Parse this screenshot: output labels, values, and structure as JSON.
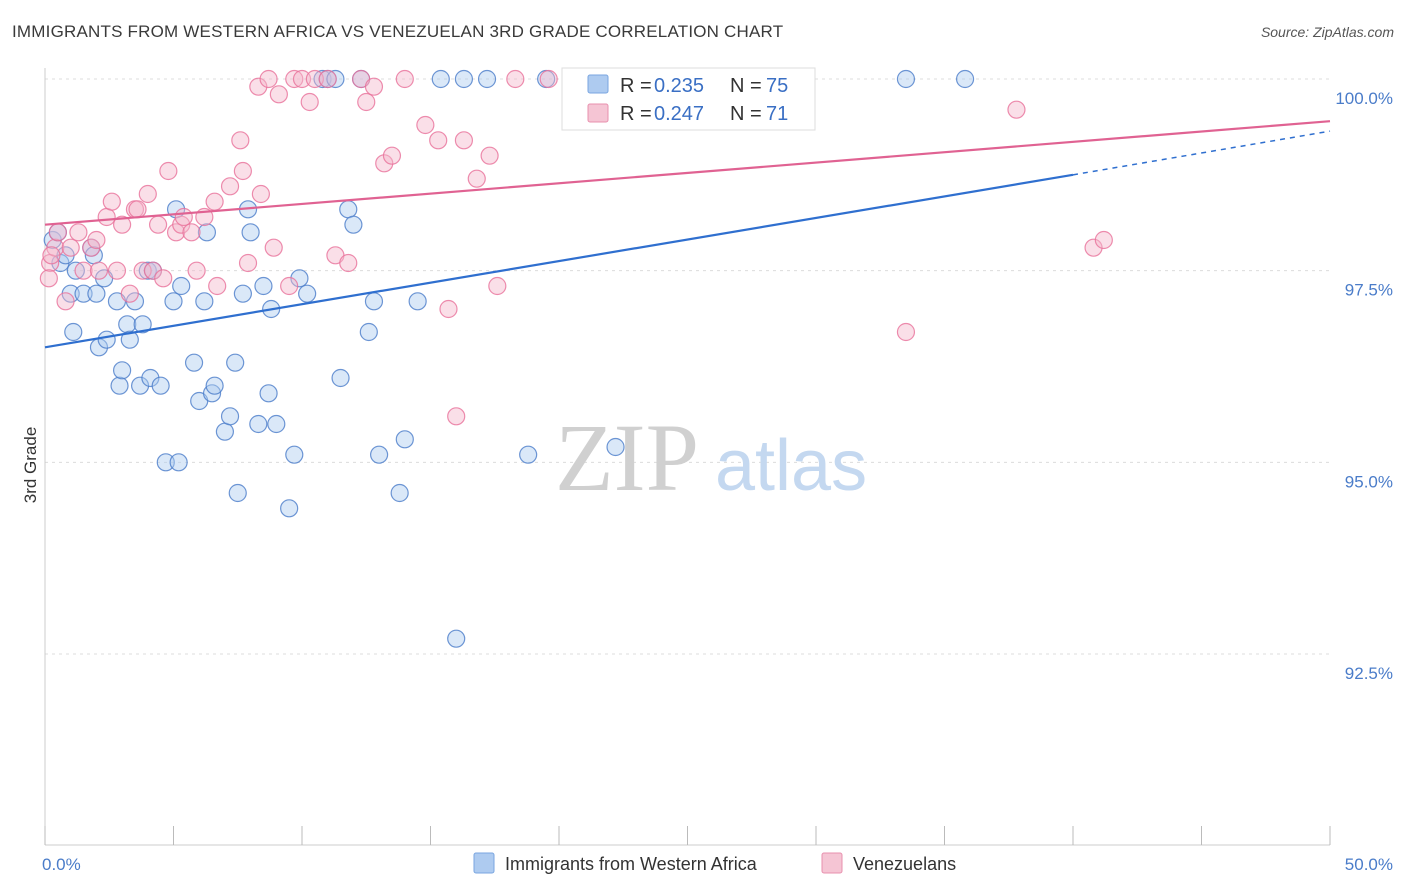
{
  "title": "IMMIGRANTS FROM WESTERN AFRICA VS VENEZUELAN 3RD GRADE CORRELATION CHART",
  "source": "Source: ZipAtlas.com",
  "watermark": {
    "zip": "ZIP",
    "atlas": "atlas"
  },
  "colors": {
    "blue": "#4a7cc9",
    "blue_fill": "#aecbf0",
    "blue_line": "#2f6fcf",
    "pink": "#e8709a",
    "pink_fill": "#f5b8cc",
    "pink_line": "#e06292",
    "tick": "#4a7cc9"
  },
  "chart_data": {
    "type": "scatter",
    "ylabel": "3rd Grade",
    "xlim": [
      0,
      50
    ],
    "ylim": [
      89.8,
      100.6
    ],
    "x_tick_labels": {
      "left": "0.0%",
      "right": "50.0%"
    },
    "y_ticks": [
      {
        "value": 100.0,
        "label": "100.0%"
      },
      {
        "value": 97.5,
        "label": "97.5%"
      },
      {
        "value": 95.0,
        "label": "95.0%"
      },
      {
        "value": 92.5,
        "label": "92.5%"
      }
    ],
    "legend_stats": [
      {
        "r_label": "R =",
        "r": "0.235",
        "n_label": "N =",
        "n": "75"
      },
      {
        "r_label": "R =",
        "r": "0.247",
        "n_label": "N =",
        "n": "71"
      }
    ],
    "series": [
      {
        "name": "Immigrants from Western Africa",
        "color": "blue",
        "trend": {
          "x0": 0,
          "y0": 96.5,
          "x1": 40,
          "y1": 98.75,
          "dash_to_x": 50,
          "dash_to_y": 99.32
        },
        "points": [
          [
            0.3,
            97.9
          ],
          [
            0.5,
            98.0
          ],
          [
            0.6,
            97.6
          ],
          [
            0.8,
            97.7
          ],
          [
            1.0,
            97.2
          ],
          [
            1.1,
            96.7
          ],
          [
            1.2,
            97.5
          ],
          [
            1.5,
            97.2
          ],
          [
            1.8,
            97.8
          ],
          [
            1.9,
            97.7
          ],
          [
            2.0,
            97.2
          ],
          [
            2.1,
            96.5
          ],
          [
            2.3,
            97.4
          ],
          [
            2.4,
            96.6
          ],
          [
            2.8,
            97.1
          ],
          [
            2.9,
            96.0
          ],
          [
            3.0,
            96.2
          ],
          [
            3.2,
            96.8
          ],
          [
            3.3,
            96.6
          ],
          [
            3.5,
            97.1
          ],
          [
            3.7,
            96.0
          ],
          [
            3.8,
            96.8
          ],
          [
            4.0,
            97.5
          ],
          [
            4.1,
            96.1
          ],
          [
            4.2,
            97.5
          ],
          [
            4.5,
            96.0
          ],
          [
            4.7,
            95.0
          ],
          [
            5.0,
            97.1
          ],
          [
            5.1,
            98.3
          ],
          [
            5.2,
            95.0
          ],
          [
            5.3,
            97.3
          ],
          [
            5.8,
            96.3
          ],
          [
            6.0,
            95.8
          ],
          [
            6.2,
            97.1
          ],
          [
            6.3,
            98.0
          ],
          [
            6.5,
            95.9
          ],
          [
            6.6,
            96.0
          ],
          [
            7.0,
            95.4
          ],
          [
            7.2,
            95.6
          ],
          [
            7.4,
            96.3
          ],
          [
            7.5,
            94.6
          ],
          [
            7.7,
            97.2
          ],
          [
            7.9,
            98.3
          ],
          [
            8.0,
            98.0
          ],
          [
            8.3,
            95.5
          ],
          [
            8.5,
            97.3
          ],
          [
            8.7,
            95.9
          ],
          [
            8.8,
            97.0
          ],
          [
            9.0,
            95.5
          ],
          [
            9.5,
            94.4
          ],
          [
            9.7,
            95.1
          ],
          [
            9.9,
            97.4
          ],
          [
            10.2,
            97.2
          ],
          [
            10.8,
            100.0
          ],
          [
            11.0,
            100.0
          ],
          [
            11.3,
            100.0
          ],
          [
            11.5,
            96.1
          ],
          [
            11.8,
            98.3
          ],
          [
            12.0,
            98.1
          ],
          [
            12.3,
            100.0
          ],
          [
            12.6,
            96.7
          ],
          [
            12.8,
            97.1
          ],
          [
            13.0,
            95.1
          ],
          [
            13.8,
            94.6
          ],
          [
            14.0,
            95.3
          ],
          [
            14.5,
            97.1
          ],
          [
            15.4,
            100.0
          ],
          [
            16.0,
            92.7
          ],
          [
            16.3,
            100.0
          ],
          [
            17.2,
            100.0
          ],
          [
            18.8,
            95.1
          ],
          [
            19.5,
            100.0
          ],
          [
            22.2,
            95.2
          ],
          [
            33.5,
            100.0
          ],
          [
            35.8,
            100.0
          ]
        ]
      },
      {
        "name": "Venezuelans",
        "color": "pink",
        "trend": {
          "x0": 0,
          "y0": 98.1,
          "x1": 50,
          "y1": 99.45
        },
        "points": [
          [
            0.2,
            97.6
          ],
          [
            0.4,
            97.8
          ],
          [
            0.5,
            98.0
          ],
          [
            0.8,
            97.1
          ],
          [
            1.0,
            97.8
          ],
          [
            1.3,
            98.0
          ],
          [
            1.5,
            97.5
          ],
          [
            1.8,
            97.8
          ],
          [
            2.0,
            97.9
          ],
          [
            2.1,
            97.5
          ],
          [
            2.4,
            98.2
          ],
          [
            2.6,
            98.4
          ],
          [
            2.8,
            97.5
          ],
          [
            3.0,
            98.1
          ],
          [
            3.3,
            97.2
          ],
          [
            3.5,
            98.3
          ],
          [
            3.6,
            98.3
          ],
          [
            3.8,
            97.5
          ],
          [
            4.0,
            98.5
          ],
          [
            4.2,
            97.5
          ],
          [
            4.4,
            98.1
          ],
          [
            4.6,
            97.4
          ],
          [
            4.8,
            98.8
          ],
          [
            5.1,
            98.0
          ],
          [
            5.3,
            98.1
          ],
          [
            5.4,
            98.2
          ],
          [
            5.7,
            98.0
          ],
          [
            5.9,
            97.5
          ],
          [
            6.2,
            98.2
          ],
          [
            6.6,
            98.4
          ],
          [
            6.7,
            97.3
          ],
          [
            7.2,
            98.6
          ],
          [
            7.6,
            99.2
          ],
          [
            7.7,
            98.8
          ],
          [
            7.9,
            97.6
          ],
          [
            8.3,
            99.9
          ],
          [
            8.4,
            98.5
          ],
          [
            8.7,
            100.0
          ],
          [
            8.9,
            97.8
          ],
          [
            9.1,
            99.8
          ],
          [
            9.5,
            97.3
          ],
          [
            9.7,
            100.0
          ],
          [
            10.0,
            100.0
          ],
          [
            10.3,
            99.7
          ],
          [
            10.5,
            100.0
          ],
          [
            11.0,
            100.0
          ],
          [
            11.3,
            97.7
          ],
          [
            11.8,
            97.6
          ],
          [
            12.3,
            100.0
          ],
          [
            12.5,
            99.7
          ],
          [
            12.8,
            99.9
          ],
          [
            13.2,
            98.9
          ],
          [
            13.5,
            99.0
          ],
          [
            14.0,
            100.0
          ],
          [
            14.8,
            99.4
          ],
          [
            15.3,
            99.2
          ],
          [
            15.7,
            97.0
          ],
          [
            16.0,
            95.6
          ],
          [
            16.3,
            99.2
          ],
          [
            16.8,
            98.7
          ],
          [
            17.3,
            99.0
          ],
          [
            17.6,
            97.3
          ],
          [
            18.3,
            100.0
          ],
          [
            19.6,
            100.0
          ],
          [
            20.5,
            99.6
          ],
          [
            33.5,
            96.7
          ],
          [
            37.8,
            99.6
          ],
          [
            40.8,
            97.8
          ],
          [
            41.2,
            97.9
          ],
          [
            0.15,
            97.4
          ],
          [
            0.25,
            97.7
          ]
        ]
      }
    ]
  }
}
